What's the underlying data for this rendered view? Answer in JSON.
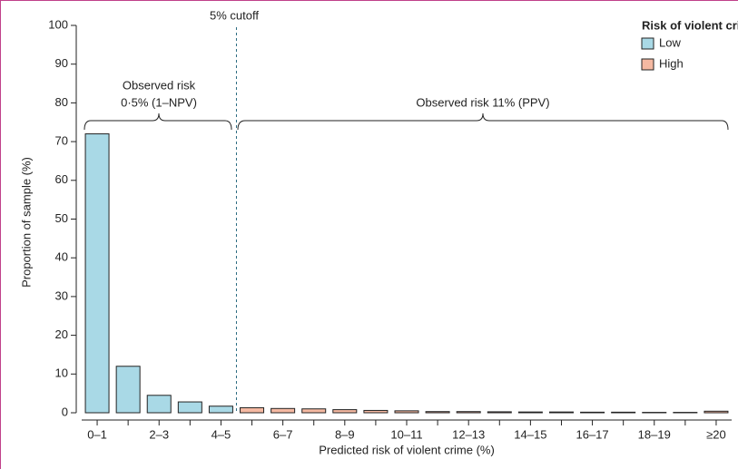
{
  "chart_data": {
    "type": "bar",
    "x_label": "Predicted risk of violent crime (%)",
    "y_label": "Proportion of sample (%)",
    "categories": [
      "0–1",
      null,
      "2–3",
      null,
      "4–5",
      null,
      "6–7",
      null,
      "8–9",
      null,
      "10–11",
      null,
      "12–13",
      null,
      "14–15",
      null,
      "16–17",
      null,
      "18–19",
      null,
      "≥20"
    ],
    "legend_title": "Risk of violent crime",
    "series": [
      {
        "name": "Low",
        "color": "#a9d9e6",
        "values": [
          72,
          12,
          4.5,
          2.8,
          1.7,
          null,
          null,
          null,
          null,
          null,
          null,
          null,
          null,
          null,
          null,
          null,
          null,
          null,
          null,
          null,
          null
        ]
      },
      {
        "name": "High",
        "color": "#f5b9a2",
        "values": [
          null,
          null,
          null,
          null,
          null,
          1.3,
          1.1,
          1.0,
          0.8,
          0.6,
          0.5,
          0.3,
          0.3,
          0.25,
          0.2,
          0.2,
          0.15,
          0.15,
          0.1,
          0.1,
          0.4
        ]
      }
    ],
    "cutoff_label": "5% cutoff",
    "annotation_low": [
      "Observed risk",
      "0·5% (1–NPV)"
    ],
    "annotation_high": "Observed risk 11% (PPV)",
    "ylim": [
      0,
      100
    ],
    "yticks": [
      0,
      10,
      20,
      30,
      40,
      50,
      60,
      70,
      80,
      90,
      100
    ]
  }
}
